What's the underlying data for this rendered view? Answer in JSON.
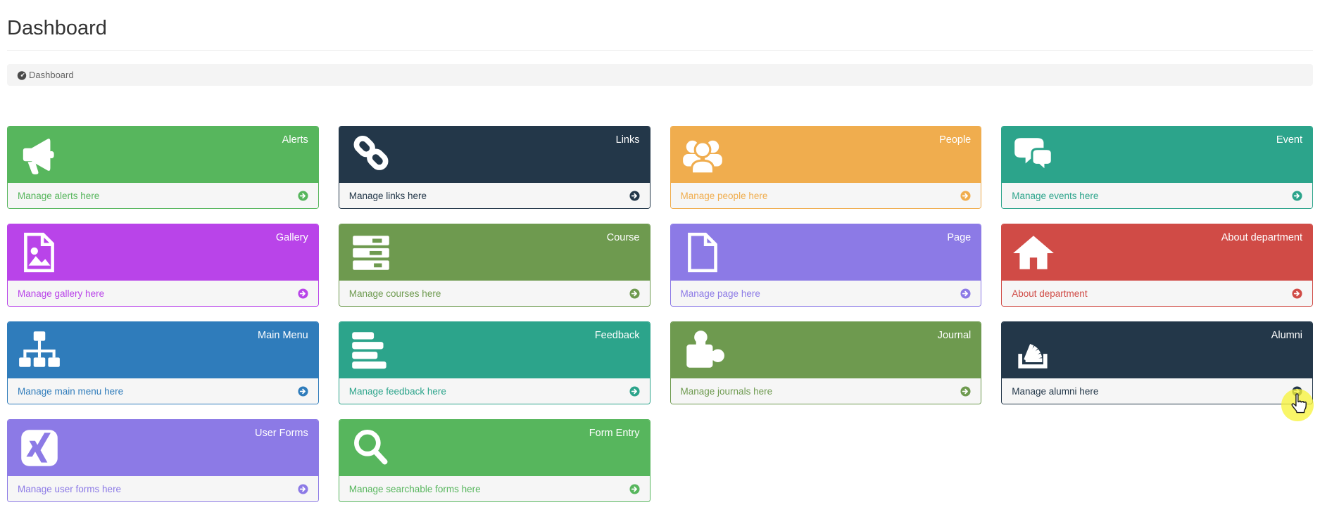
{
  "page": {
    "title": "Dashboard"
  },
  "breadcrumb": {
    "icon": "dashboard-icon",
    "label": "Dashboard"
  },
  "cards": [
    {
      "title": "Alerts",
      "footer_label": "Manage alerts here",
      "color": "#57b65d",
      "icon": "bullhorn-icon"
    },
    {
      "title": "Links",
      "footer_label": "Manage links here",
      "color": "#233749",
      "icon": "chain-link-icon"
    },
    {
      "title": "People",
      "footer_label": "Manage people here",
      "color": "#f0ad4e",
      "icon": "users-icon"
    },
    {
      "title": "Event",
      "footer_label": "Manage events here",
      "color": "#2ca48b",
      "icon": "comments-icon"
    },
    {
      "title": "Gallery",
      "footer_label": "Manage gallery here",
      "color": "#b944e9",
      "icon": "image-file-icon"
    },
    {
      "title": "Course",
      "footer_label": "Manage courses here",
      "color": "#6e9a4f",
      "icon": "tasks-icon"
    },
    {
      "title": "Page",
      "footer_label": "Manage page here",
      "color": "#8c7ae6",
      "icon": "file-outline-icon"
    },
    {
      "title": "About department",
      "footer_label": "About department",
      "color": "#d04b46",
      "icon": "home-icon"
    },
    {
      "title": "Main Menu",
      "footer_label": "Manage main menu here",
      "color": "#2f7cbb",
      "icon": "sitemap-icon"
    },
    {
      "title": "Feedback",
      "footer_label": "Manage feedback here",
      "color": "#2ca48b",
      "icon": "align-left-icon"
    },
    {
      "title": "Journal",
      "footer_label": "Manage journals here",
      "color": "#6e9a4f",
      "icon": "puzzle-piece-icon"
    },
    {
      "title": "Alumni",
      "footer_label": "Manage alumni here",
      "color": "#233749",
      "icon": "stack-overflow-icon",
      "cursor_highlight": true
    },
    {
      "title": "User Forms",
      "footer_label": "Manage user forms here",
      "color": "#8c7ae6",
      "icon": "xing-square-icon"
    },
    {
      "title": "Form Entry",
      "footer_label": "Manage searchable forms here",
      "color": "#57b65d",
      "icon": "search-icon"
    }
  ],
  "cursor": {
    "type": "hand-pointer",
    "highlight_color": "#f7f33e",
    "over": "Alumni card arrow"
  }
}
